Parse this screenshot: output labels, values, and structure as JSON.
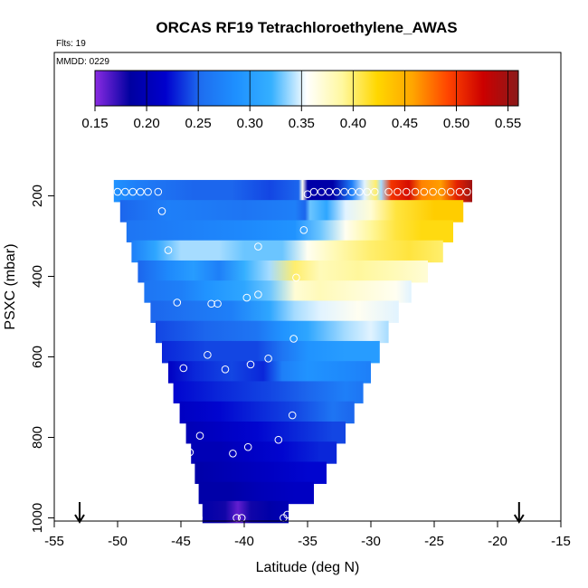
{
  "header": {
    "flights_label": "Flts: 19",
    "date_label": "MMDD: 0229"
  },
  "colorbar": {
    "range": [
      0.15,
      0.56
    ],
    "ticks": [
      "0.15",
      "0.20",
      "0.25",
      "0.30",
      "0.35",
      "0.40",
      "0.45",
      "0.50",
      "0.55"
    ],
    "tick_values": [
      0.15,
      0.2,
      0.25,
      0.3,
      0.35,
      0.4,
      0.45,
      0.5,
      0.55
    ],
    "colors": [
      "#8a2be2",
      "#0000a0",
      "#0000cd",
      "#1e6ef0",
      "#1e90ff",
      "#35b0ff",
      "#ffffff",
      "#fff8a0",
      "#ffd700",
      "#ffa500",
      "#ff4500",
      "#cc0000",
      "#8b1a1a"
    ]
  },
  "chart_data": {
    "type": "heatmap",
    "title": "ORCAS RF19 Tetrachloroethylene_AWAS",
    "xlabel": "Latitude (deg N)",
    "ylabel": "PSXC (mbar)",
    "xlim": [
      -55,
      -15
    ],
    "ylim": [
      1000,
      0
    ],
    "x_ticks": [
      "-55",
      "-50",
      "-45",
      "-40",
      "-35",
      "-30",
      "-25",
      "-20",
      "-15"
    ],
    "x_tick_values": [
      -55,
      -50,
      -45,
      -40,
      -35,
      -30,
      -25,
      -20,
      -15
    ],
    "y_ticks": [
      "200",
      "400",
      "600",
      "800",
      "1000"
    ],
    "y_tick_values": [
      200,
      400,
      600,
      800,
      1000
    ],
    "flight_endpoints_lat": [
      -53,
      -18.3
    ],
    "rows": [
      {
        "p": 187.5,
        "x0": -50.3,
        "x1": -22.0,
        "stops": [
          [
            -50.3,
            0.29
          ],
          [
            -48.5,
            0.27
          ],
          [
            -47,
            0.26
          ],
          [
            -44,
            0.25
          ],
          [
            -41,
            0.25
          ],
          [
            -38,
            0.24
          ],
          [
            -35.7,
            0.25
          ],
          [
            -35.4,
            0.36
          ],
          [
            -35.0,
            0.19
          ],
          [
            -33,
            0.19
          ],
          [
            -31.5,
            0.27
          ],
          [
            -30.5,
            0.35
          ],
          [
            -29.6,
            0.4
          ],
          [
            -29.2,
            0.34
          ],
          [
            -28.4,
            0.5
          ],
          [
            -27,
            0.52
          ],
          [
            -26,
            0.47
          ],
          [
            -24.5,
            0.46
          ],
          [
            -23.2,
            0.51
          ],
          [
            -22.0,
            0.55
          ]
        ]
      },
      {
        "p": 237.5,
        "x0": -49.8,
        "x1": -22.7,
        "stops": [
          [
            -49.8,
            0.25
          ],
          [
            -46,
            0.27
          ],
          [
            -40,
            0.26
          ],
          [
            -36,
            0.27
          ],
          [
            -35.2,
            0.25
          ],
          [
            -34.8,
            0.33
          ],
          [
            -33.5,
            0.31
          ],
          [
            -32,
            0.35
          ],
          [
            -30,
            0.37
          ],
          [
            -28,
            0.41
          ],
          [
            -25,
            0.43
          ],
          [
            -22.7,
            0.43
          ]
        ]
      },
      {
        "p": 287.5,
        "x0": -49.3,
        "x1": -23.5,
        "stops": [
          [
            -49.3,
            0.26
          ],
          [
            -45,
            0.27
          ],
          [
            -40,
            0.28
          ],
          [
            -36,
            0.29
          ],
          [
            -34,
            0.33
          ],
          [
            -32,
            0.36
          ],
          [
            -30,
            0.39
          ],
          [
            -28,
            0.41
          ],
          [
            -26,
            0.42
          ],
          [
            -23.5,
            0.42
          ]
        ]
      },
      {
        "p": 337.5,
        "x0": -48.9,
        "x1": -24.3,
        "stops": [
          [
            -48.9,
            0.27
          ],
          [
            -47,
            0.31
          ],
          [
            -45,
            0.34
          ],
          [
            -42,
            0.34
          ],
          [
            -40,
            0.33
          ],
          [
            -37,
            0.33
          ],
          [
            -35,
            0.36
          ],
          [
            -33,
            0.38
          ],
          [
            -30,
            0.4
          ],
          [
            -27,
            0.41
          ],
          [
            -24.3,
            0.4
          ]
        ]
      },
      {
        "p": 387.5,
        "x0": -48.4,
        "x1": -25.5,
        "stops": [
          [
            -48.4,
            0.25
          ],
          [
            -46,
            0.28
          ],
          [
            -44,
            0.3
          ],
          [
            -42,
            0.27
          ],
          [
            -40,
            0.32
          ],
          [
            -38,
            0.34
          ],
          [
            -36,
            0.4
          ],
          [
            -34,
            0.38
          ],
          [
            -31,
            0.39
          ],
          [
            -28,
            0.38
          ],
          [
            -25.5,
            0.37
          ]
        ]
      },
      {
        "p": 437.5,
        "x0": -47.9,
        "x1": -26.8,
        "stops": [
          [
            -47.9,
            0.26
          ],
          [
            -45,
            0.27
          ],
          [
            -43,
            0.29
          ],
          [
            -40,
            0.31
          ],
          [
            -38,
            0.33
          ],
          [
            -36,
            0.37
          ],
          [
            -34,
            0.38
          ],
          [
            -31,
            0.37
          ],
          [
            -28,
            0.36
          ],
          [
            -26.8,
            0.35
          ]
        ]
      },
      {
        "p": 487.5,
        "x0": -47.4,
        "x1": -27.8,
        "stops": [
          [
            -47.4,
            0.25
          ],
          [
            -44,
            0.26
          ],
          [
            -41,
            0.27
          ],
          [
            -38,
            0.31
          ],
          [
            -36,
            0.34
          ],
          [
            -34,
            0.35
          ],
          [
            -31,
            0.36
          ],
          [
            -27.8,
            0.35
          ]
        ]
      },
      {
        "p": 537.5,
        "x0": -47.0,
        "x1": -28.6,
        "stops": [
          [
            -47.0,
            0.24
          ],
          [
            -43,
            0.25
          ],
          [
            -39,
            0.26
          ],
          [
            -37,
            0.29
          ],
          [
            -35,
            0.31
          ],
          [
            -32,
            0.34
          ],
          [
            -30,
            0.35
          ],
          [
            -28.6,
            0.34
          ]
        ]
      },
      {
        "p": 587.5,
        "x0": -46.5,
        "x1": -29.3,
        "stops": [
          [
            -46.5,
            0.23
          ],
          [
            -43,
            0.24
          ],
          [
            -39,
            0.24
          ],
          [
            -37,
            0.26
          ],
          [
            -35,
            0.29
          ],
          [
            -32,
            0.3
          ],
          [
            -29.3,
            0.3
          ]
        ]
      },
      {
        "p": 637.5,
        "x0": -46.0,
        "x1": -30.0,
        "stops": [
          [
            -46.0,
            0.21
          ],
          [
            -44,
            0.23
          ],
          [
            -41,
            0.24
          ],
          [
            -38.5,
            0.23
          ],
          [
            -37,
            0.27
          ],
          [
            -35,
            0.29
          ],
          [
            -32,
            0.28
          ],
          [
            -30.0,
            0.27
          ]
        ]
      },
      {
        "p": 687.5,
        "x0": -45.6,
        "x1": -30.6,
        "stops": [
          [
            -45.6,
            0.22
          ],
          [
            -42,
            0.23
          ],
          [
            -38,
            0.24
          ],
          [
            -35,
            0.25
          ],
          [
            -32,
            0.27
          ],
          [
            -30.6,
            0.26
          ]
        ]
      },
      {
        "p": 737.5,
        "x0": -45.1,
        "x1": -31.3,
        "stops": [
          [
            -45.1,
            0.21
          ],
          [
            -42,
            0.22
          ],
          [
            -39,
            0.23
          ],
          [
            -36,
            0.24
          ],
          [
            -33,
            0.26
          ],
          [
            -31.3,
            0.25
          ]
        ]
      },
      {
        "p": 787.5,
        "x0": -44.6,
        "x1": -32.0,
        "stops": [
          [
            -44.6,
            0.2
          ],
          [
            -42,
            0.21
          ],
          [
            -39,
            0.22
          ],
          [
            -36,
            0.23
          ],
          [
            -33,
            0.24
          ],
          [
            -32.0,
            0.24
          ]
        ]
      },
      {
        "p": 837.5,
        "x0": -44.2,
        "x1": -32.7,
        "stops": [
          [
            -44.2,
            0.2
          ],
          [
            -42,
            0.2
          ],
          [
            -40,
            0.21
          ],
          [
            -37,
            0.22
          ],
          [
            -34,
            0.23
          ],
          [
            -32.7,
            0.23
          ]
        ]
      },
      {
        "p": 887.5,
        "x0": -43.9,
        "x1": -33.5,
        "stops": [
          [
            -43.9,
            0.19
          ],
          [
            -41,
            0.2
          ],
          [
            -38,
            0.21
          ],
          [
            -35,
            0.22
          ],
          [
            -33.5,
            0.22
          ]
        ]
      },
      {
        "p": 937.5,
        "x0": -43.6,
        "x1": -34.5,
        "stops": [
          [
            -43.6,
            0.19
          ],
          [
            -41,
            0.19
          ],
          [
            -39,
            0.2
          ],
          [
            -36,
            0.21
          ],
          [
            -34.5,
            0.21
          ]
        ]
      },
      {
        "p": 985.0,
        "x0": -43.3,
        "x1": -36.5,
        "stops": [
          [
            -43.3,
            0.19
          ],
          [
            -41.5,
            0.18
          ],
          [
            -40.5,
            0.16
          ],
          [
            -39.5,
            0.18
          ],
          [
            -38,
            0.19
          ],
          [
            -36.5,
            0.2
          ]
        ]
      }
    ],
    "samples": [
      {
        "lat": -50.0,
        "p": 190
      },
      {
        "lat": -49.4,
        "p": 190
      },
      {
        "lat": -48.8,
        "p": 190
      },
      {
        "lat": -48.2,
        "p": 190
      },
      {
        "lat": -47.6,
        "p": 190
      },
      {
        "lat": -46.8,
        "p": 190
      },
      {
        "lat": -35.0,
        "p": 196
      },
      {
        "lat": -34.5,
        "p": 190
      },
      {
        "lat": -33.9,
        "p": 190
      },
      {
        "lat": -33.3,
        "p": 190
      },
      {
        "lat": -32.7,
        "p": 190
      },
      {
        "lat": -32.1,
        "p": 190
      },
      {
        "lat": -31.5,
        "p": 190
      },
      {
        "lat": -30.9,
        "p": 190
      },
      {
        "lat": -30.3,
        "p": 190
      },
      {
        "lat": -29.7,
        "p": 190
      },
      {
        "lat": -28.6,
        "p": 190
      },
      {
        "lat": -27.9,
        "p": 190
      },
      {
        "lat": -27.2,
        "p": 190
      },
      {
        "lat": -26.5,
        "p": 190
      },
      {
        "lat": -25.8,
        "p": 190
      },
      {
        "lat": -25.1,
        "p": 190
      },
      {
        "lat": -24.4,
        "p": 190
      },
      {
        "lat": -23.7,
        "p": 190
      },
      {
        "lat": -23.0,
        "p": 190
      },
      {
        "lat": -22.4,
        "p": 190
      },
      {
        "lat": -46.5,
        "p": 238
      },
      {
        "lat": -35.3,
        "p": 285
      },
      {
        "lat": -46.0,
        "p": 335
      },
      {
        "lat": -38.9,
        "p": 326
      },
      {
        "lat": -35.9,
        "p": 403
      },
      {
        "lat": -45.3,
        "p": 465
      },
      {
        "lat": -42.6,
        "p": 468
      },
      {
        "lat": -42.1,
        "p": 468
      },
      {
        "lat": -39.8,
        "p": 453
      },
      {
        "lat": -38.9,
        "p": 445
      },
      {
        "lat": -36.1,
        "p": 555
      },
      {
        "lat": -42.9,
        "p": 595
      },
      {
        "lat": -38.1,
        "p": 604
      },
      {
        "lat": -39.5,
        "p": 619
      },
      {
        "lat": -44.8,
        "p": 628
      },
      {
        "lat": -41.5,
        "p": 631
      },
      {
        "lat": -36.2,
        "p": 745
      },
      {
        "lat": -37.3,
        "p": 806
      },
      {
        "lat": -43.5,
        "p": 796
      },
      {
        "lat": -39.7,
        "p": 824
      },
      {
        "lat": -40.9,
        "p": 840
      },
      {
        "lat": -44.3,
        "p": 837
      },
      {
        "lat": -44.0,
        "p": 1000
      },
      {
        "lat": -43.6,
        "p": 1000
      },
      {
        "lat": -40.6,
        "p": 1000
      },
      {
        "lat": -40.2,
        "p": 1000
      },
      {
        "lat": -36.9,
        "p": 1000
      },
      {
        "lat": -36.6,
        "p": 992
      }
    ]
  }
}
